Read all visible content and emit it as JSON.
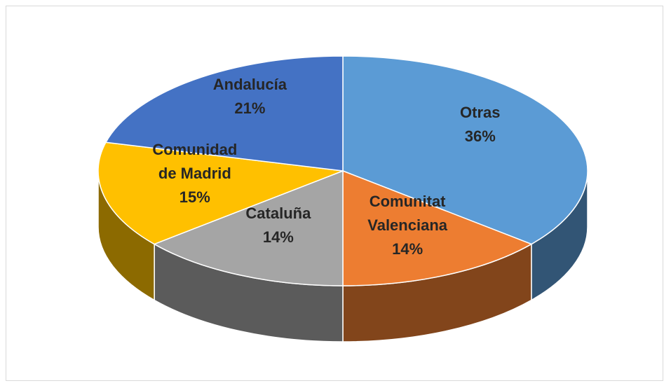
{
  "chart_data": {
    "type": "pie",
    "categories": [
      "Otras",
      "Comunitat Valenciana",
      "Cataluña",
      "Comunidad de Madrid",
      "Andalucía"
    ],
    "values": [
      36,
      14,
      14,
      15,
      21
    ],
    "value_labels": [
      "36%",
      "14%",
      "14%",
      "15%",
      "21%"
    ],
    "colors": [
      "#5b9bd5",
      "#ed7d31",
      "#a5a5a5",
      "#ffc000",
      "#4472c4"
    ],
    "three_d": true
  }
}
